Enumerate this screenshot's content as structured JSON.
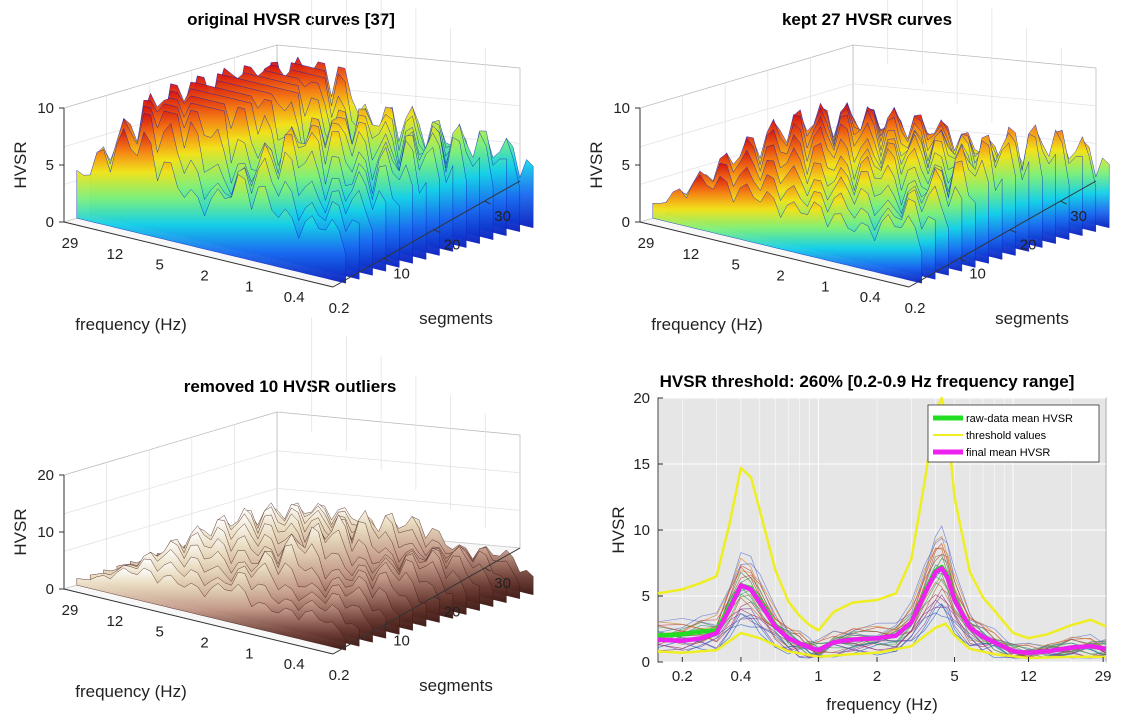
{
  "chart_data": [
    {
      "type": "surface",
      "title": "original HVSR curves [37]",
      "xlabel": "frequency (Hz)",
      "ylabel": "segments",
      "zlabel": "HVSR",
      "x_ticks": [
        "29",
        "12",
        "5",
        "2",
        "1",
        "0.4",
        "0.2"
      ],
      "y_ticks": [
        "10",
        "20",
        "30"
      ],
      "z_ticks": [
        "0",
        "5",
        "10"
      ],
      "zlim": [
        0,
        10
      ],
      "colormap": "jet",
      "segments": 37
    },
    {
      "type": "surface",
      "title": "kept 27 HVSR curves",
      "xlabel": "frequency (Hz)",
      "ylabel": "segments",
      "zlabel": "HVSR",
      "x_ticks": [
        "29",
        "12",
        "5",
        "2",
        "1",
        "0.4",
        "0.2"
      ],
      "y_ticks": [
        "10",
        "20",
        "30"
      ],
      "z_ticks": [
        "0",
        "5",
        "10"
      ],
      "zlim": [
        0,
        10
      ],
      "colormap": "jet",
      "segments": 27
    },
    {
      "type": "surface",
      "title": "removed 10 HVSR outliers",
      "xlabel": "frequency (Hz)",
      "ylabel": "segments",
      "zlabel": "HVSR",
      "x_ticks": [
        "29",
        "12",
        "5",
        "2",
        "1",
        "0.4",
        "0.2"
      ],
      "y_ticks": [
        "10",
        "20",
        "30"
      ],
      "z_ticks": [
        "0",
        "10",
        "20"
      ],
      "zlim": [
        0,
        20
      ],
      "colormap": "pink",
      "segments": 10
    },
    {
      "type": "line",
      "title": "HVSR threshold: 260% [0.2-0.9 Hz frequency range]",
      "xlabel": "frequency (Hz)",
      "ylabel": "HVSR",
      "xscale": "log",
      "xlim": [
        0.15,
        30
      ],
      "ylim": [
        0,
        20
      ],
      "x_ticks": [
        0.2,
        0.4,
        1,
        2,
        5,
        12,
        29
      ],
      "y_ticks": [
        0,
        5,
        10,
        15,
        20
      ],
      "grid": true,
      "legend_position": "top-right",
      "legend": [
        "raw-data mean HVSR",
        "threshold values",
        "final mean HVSR"
      ],
      "series": [
        {
          "name": "raw-data mean HVSR",
          "color": "#22dd22",
          "x": [
            0.15,
            0.2,
            0.25,
            0.3,
            0.35,
            0.4,
            0.45,
            0.5,
            0.6,
            0.7,
            0.8,
            0.9,
            1.0,
            1.2,
            1.5,
            2.0,
            2.5,
            3.0,
            3.5,
            4.0,
            4.3,
            4.6,
            5.0,
            6.0,
            7.0,
            8.0,
            10.0,
            12.0,
            15.0,
            20.0,
            25.0,
            30.0
          ],
          "y": [
            2.0,
            2.1,
            2.3,
            2.4,
            4.2,
            5.8,
            5.6,
            4.6,
            2.8,
            1.8,
            1.4,
            1.1,
            0.9,
            1.5,
            1.7,
            1.8,
            2.0,
            3.0,
            5.2,
            6.9,
            7.2,
            6.5,
            4.8,
            2.6,
            1.9,
            1.5,
            0.8,
            0.7,
            0.8,
            1.1,
            1.2,
            1.0
          ]
        },
        {
          "name": "threshold values",
          "color": "#eeee22",
          "x": [
            0.15,
            0.2,
            0.25,
            0.3,
            0.35,
            0.4,
            0.45,
            0.5,
            0.6,
            0.7,
            0.8,
            0.9,
            1.0,
            1.2,
            1.5,
            2.0,
            2.5,
            3.0,
            3.5,
            4.0,
            4.3,
            4.6,
            5.0,
            6.0,
            7.0,
            8.0,
            10.0,
            12.0,
            15.0,
            20.0,
            25.0,
            30.0
          ],
          "y": [
            5.2,
            5.5,
            6.0,
            6.5,
            10.5,
            14.7,
            14.0,
            11.5,
            7.0,
            4.6,
            3.5,
            2.8,
            2.4,
            3.8,
            4.5,
            4.7,
            5.2,
            7.8,
            13.5,
            19.0,
            20.0,
            18.0,
            12.5,
            6.8,
            4.9,
            3.9,
            2.2,
            1.8,
            2.1,
            2.8,
            3.2,
            2.7
          ]
        },
        {
          "name": "threshold values (lower)",
          "color": "#eeee22",
          "x": [
            0.15,
            0.2,
            0.3,
            0.4,
            0.5,
            0.7,
            1.0,
            1.5,
            2.0,
            3.0,
            4.0,
            4.5,
            5.0,
            6.0,
            8.0,
            12.0,
            20.0,
            30.0
          ],
          "y": [
            0.8,
            0.7,
            0.9,
            2.2,
            1.8,
            0.8,
            0.4,
            0.6,
            0.7,
            1.2,
            2.6,
            2.9,
            2.0,
            1.0,
            0.6,
            0.3,
            0.4,
            0.4
          ]
        },
        {
          "name": "final mean HVSR",
          "color": "#ee22ee",
          "x": [
            0.15,
            0.2,
            0.25,
            0.3,
            0.35,
            0.4,
            0.45,
            0.5,
            0.6,
            0.7,
            0.8,
            0.9,
            1.0,
            1.2,
            1.5,
            2.0,
            2.5,
            3.0,
            3.5,
            4.0,
            4.3,
            4.6,
            5.0,
            6.0,
            7.0,
            8.0,
            10.0,
            12.0,
            15.0,
            20.0,
            25.0,
            30.0
          ],
          "y": [
            1.7,
            1.6,
            1.8,
            2.2,
            4.0,
            5.8,
            5.5,
            4.5,
            2.7,
            1.8,
            1.4,
            1.1,
            0.9,
            1.5,
            1.7,
            1.8,
            2.0,
            3.0,
            5.1,
            6.8,
            7.1,
            6.4,
            4.7,
            2.6,
            1.9,
            1.5,
            0.8,
            0.7,
            0.8,
            1.1,
            1.2,
            1.0
          ]
        }
      ]
    }
  ]
}
